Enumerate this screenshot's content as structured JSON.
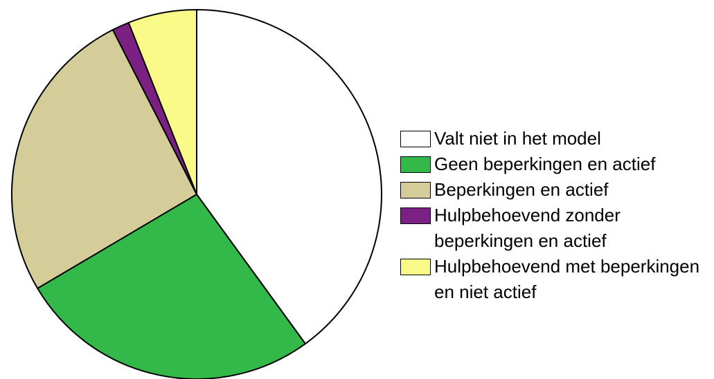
{
  "chart_data": {
    "type": "pie",
    "categories": [
      "Valt niet in het model",
      "Geen beperkingen en actief",
      "Beperkingen en actief",
      "Hulpbehoevend zonder beperkingen en actief",
      "Hulpbehoevend met beperkingen en niet actief"
    ],
    "values": [
      40,
      26.5,
      26,
      1.5,
      6
    ],
    "colors": [
      "#ffffff",
      "#33b94a",
      "#d4cd9a",
      "#7b2183",
      "#fafa88"
    ],
    "legend": "right"
  }
}
